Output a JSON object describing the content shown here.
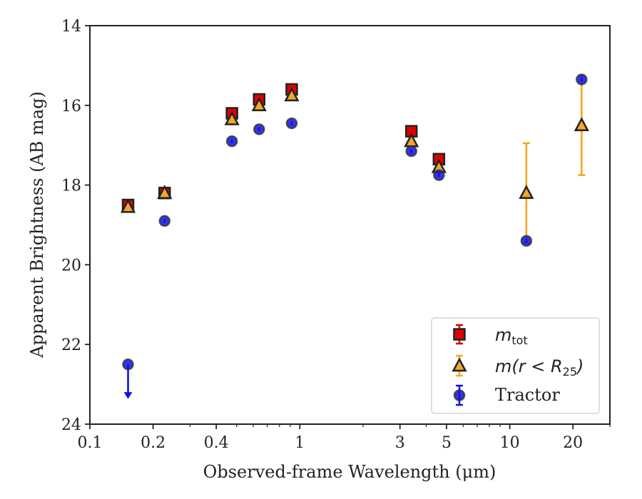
{
  "chart_data": {
    "type": "scatter",
    "xlabel": "Observed-frame Wavelength (μm)",
    "ylabel": "Apparent Brightness (AB mag)",
    "xscale": "log",
    "xlim": [
      0.1,
      30
    ],
    "ylim": [
      24,
      14
    ],
    "y_inverted": true,
    "x_ticks": [
      0.1,
      0.2,
      0.4,
      1,
      3,
      5,
      10,
      20
    ],
    "x_tick_labels": [
      "0.1",
      "0.2",
      "0.4",
      "1",
      "3",
      "5",
      "10",
      "20"
    ],
    "y_ticks": [
      14,
      16,
      18,
      20,
      22,
      24
    ],
    "y_tick_labels": [
      "14",
      "16",
      "18",
      "20",
      "22",
      "24"
    ],
    "grid": false,
    "legend_position": "bottom-right",
    "legend": [
      {
        "label_main": "m",
        "label_sub": "tot",
        "label_suffix": ""
      },
      {
        "label_main": "m(r < R",
        "label_sub": "25",
        "label_suffix": ")"
      },
      {
        "label_main": "Tractor",
        "label_sub": "",
        "label_suffix": ""
      }
    ],
    "series": [
      {
        "key": "mtot",
        "marker": "square",
        "color": "#e00000",
        "errcolor": "#d80000",
        "points": [
          {
            "x": 0.152,
            "y": 18.5,
            "yerr": 0.1
          },
          {
            "x": 0.227,
            "y": 18.2,
            "yerr": 0.1
          },
          {
            "x": 0.475,
            "y": 16.2,
            "yerr": 0.05
          },
          {
            "x": 0.64,
            "y": 15.85,
            "yerr": 0.05
          },
          {
            "x": 0.915,
            "y": 15.6,
            "yerr": 0.05
          },
          {
            "x": 3.4,
            "y": 16.65,
            "yerr": 0.05
          },
          {
            "x": 4.6,
            "y": 17.35,
            "yerr": 0.05
          }
        ]
      },
      {
        "key": "mr25",
        "marker": "triangle",
        "color": "#f5a623",
        "errcolor": "#f5a623",
        "points": [
          {
            "x": 0.152,
            "y": 18.55,
            "yerr": 0.05
          },
          {
            "x": 0.227,
            "y": 18.2,
            "yerr": 0.15
          },
          {
            "x": 0.475,
            "y": 16.35,
            "yerr": 0.05
          },
          {
            "x": 0.64,
            "y": 16.0,
            "yerr": 0.05
          },
          {
            "x": 0.915,
            "y": 15.75,
            "yerr": 0.05
          },
          {
            "x": 3.4,
            "y": 16.9,
            "yerr": 0.05
          },
          {
            "x": 4.6,
            "y": 17.55,
            "yerr": 0.05
          },
          {
            "x": 12.0,
            "y": 18.2,
            "yerr": 1.25
          },
          {
            "x": 22.0,
            "y": 16.5,
            "yerr": 1.25
          }
        ]
      },
      {
        "key": "tractor",
        "marker": "circle",
        "color": "#1010e8",
        "errcolor": "#1010e8",
        "points": [
          {
            "x": 0.152,
            "y": 22.5,
            "yerr": 0,
            "upper_limit": true
          },
          {
            "x": 0.227,
            "y": 18.9,
            "yerr": 0.05
          },
          {
            "x": 0.475,
            "y": 16.9,
            "yerr": 0.05
          },
          {
            "x": 0.64,
            "y": 16.6,
            "yerr": 0.05
          },
          {
            "x": 0.915,
            "y": 16.45,
            "yerr": 0.05
          },
          {
            "x": 3.4,
            "y": 17.15,
            "yerr": 0.05
          },
          {
            "x": 4.6,
            "y": 17.75,
            "yerr": 0.05
          },
          {
            "x": 12.0,
            "y": 19.4,
            "yerr": 0.05
          },
          {
            "x": 22.0,
            "y": 15.35,
            "yerr": 0.05
          }
        ]
      }
    ]
  }
}
